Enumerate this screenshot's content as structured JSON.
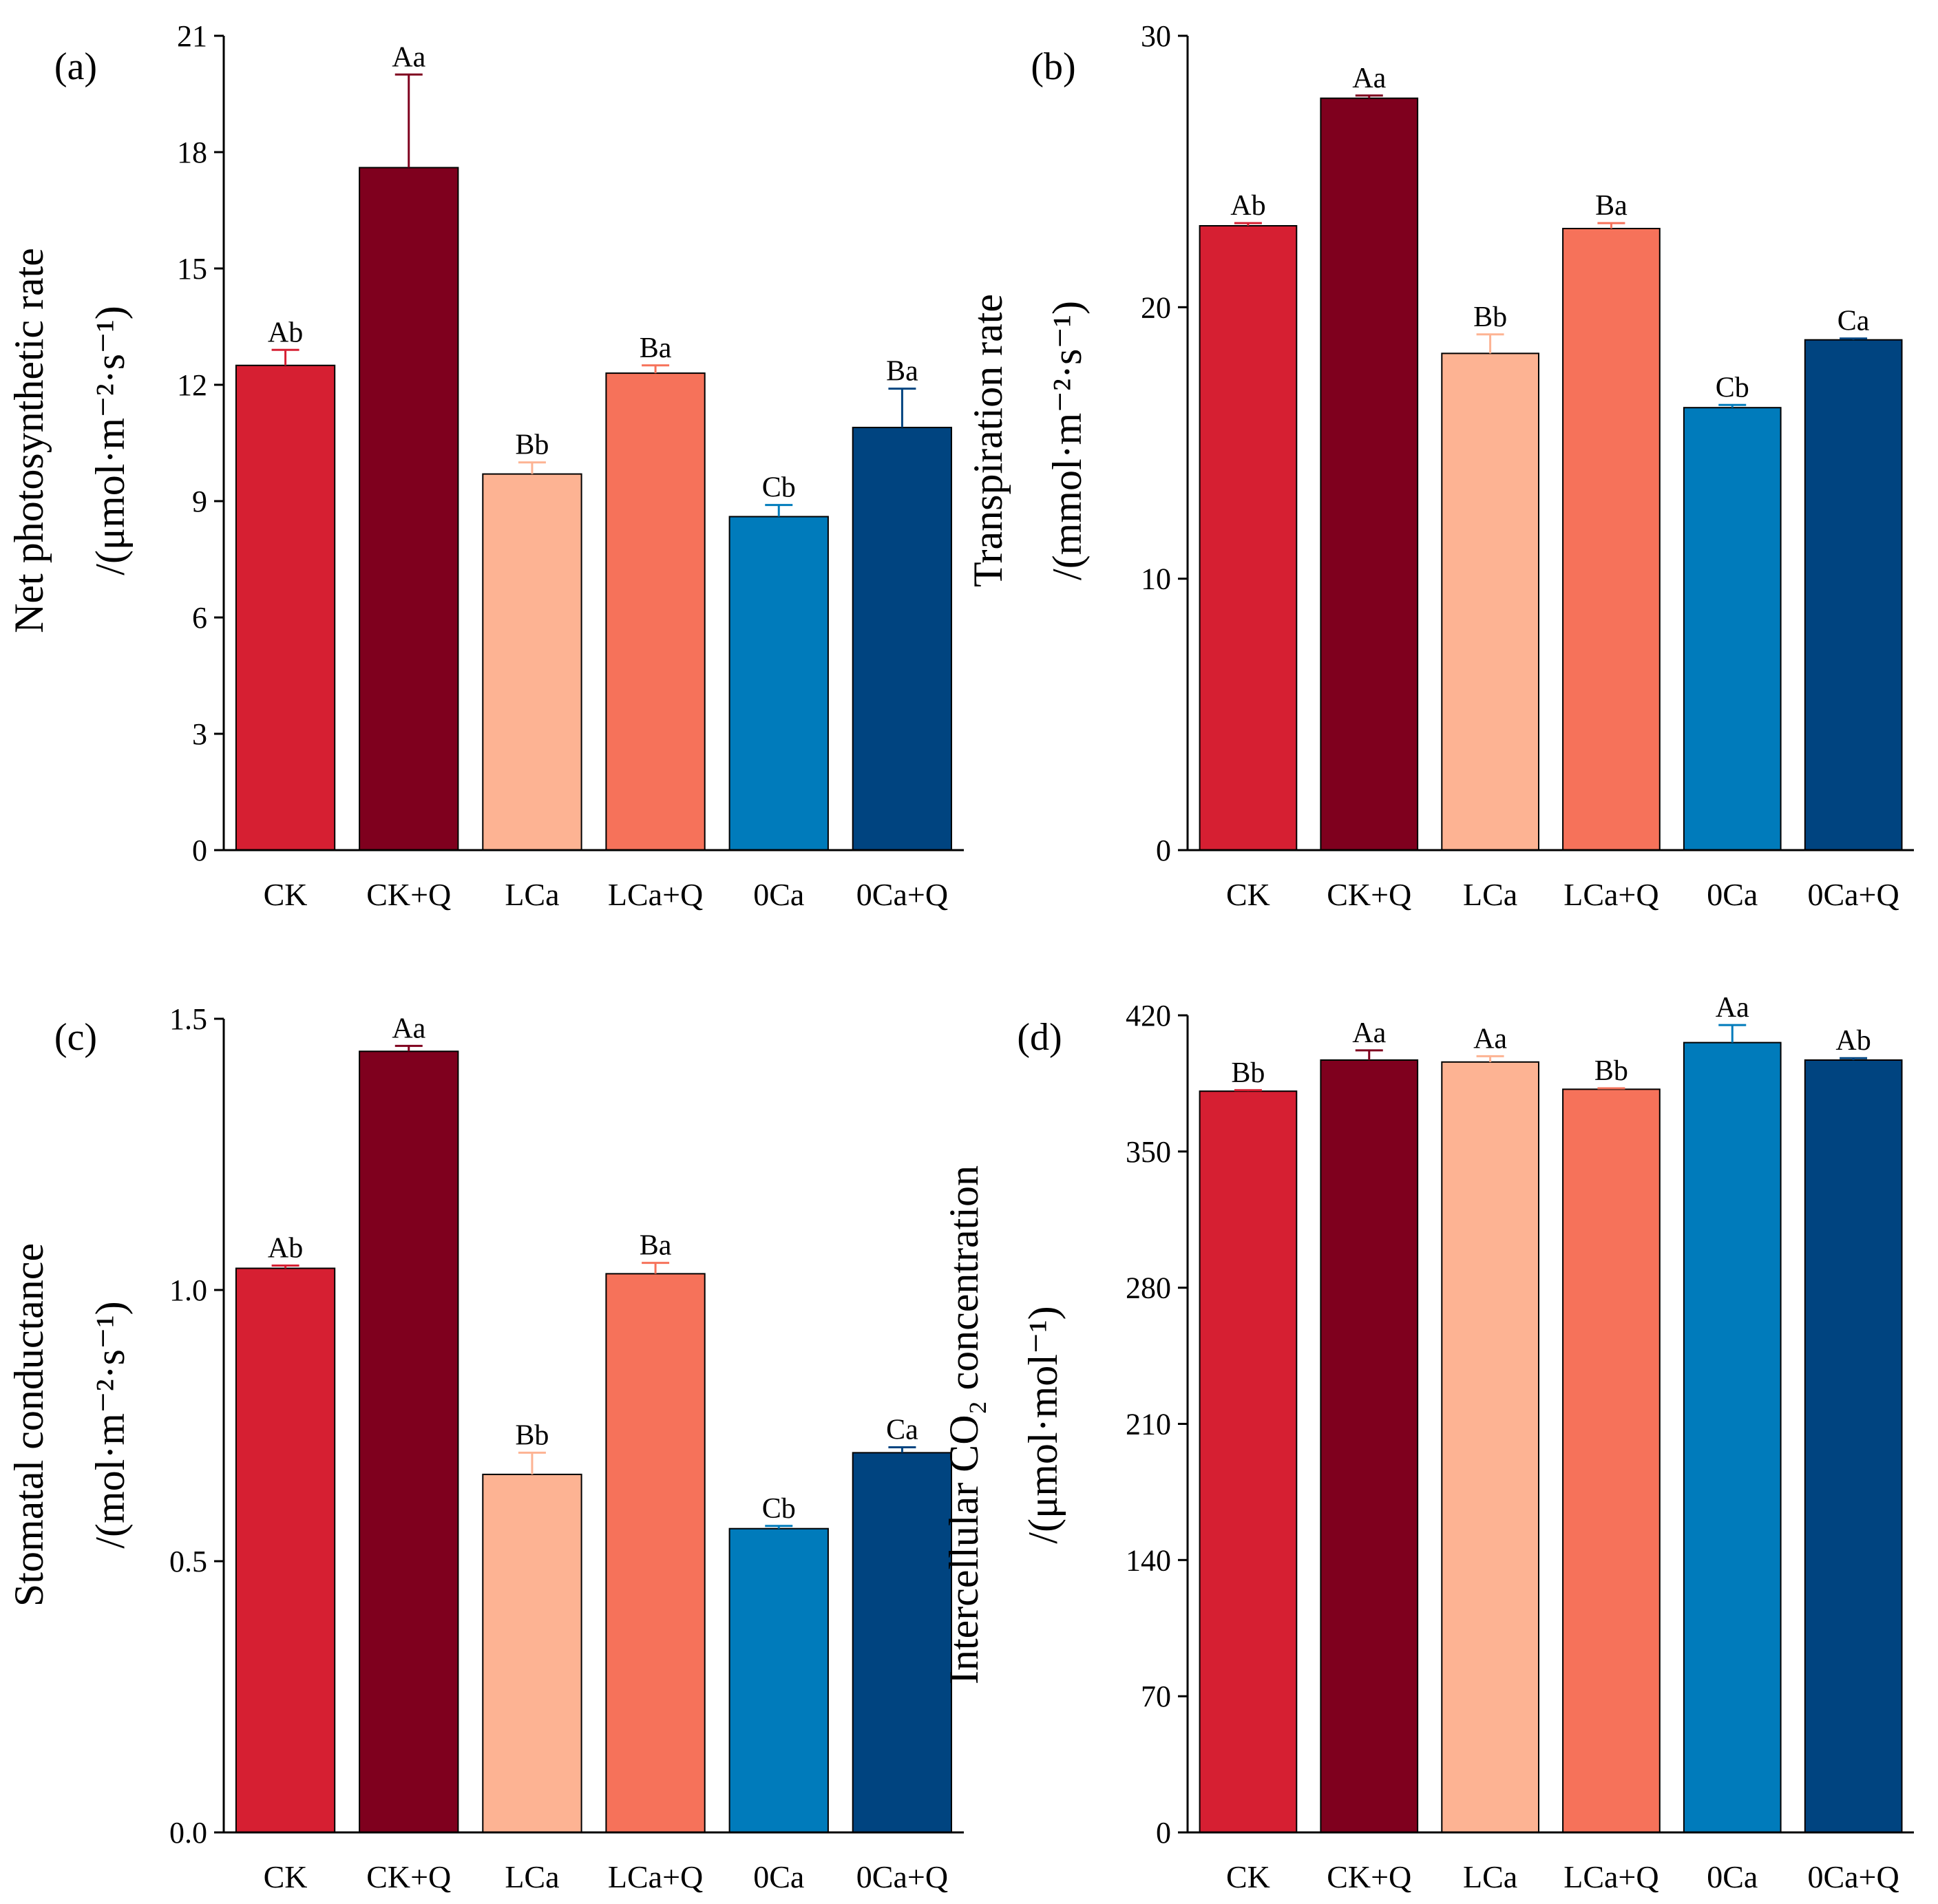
{
  "chart_data": [
    {
      "type": "bar",
      "panel": "(a)",
      "ylabel": [
        "Net photosynthetic rate",
        "/(μmol·m⁻²·s⁻¹)"
      ],
      "categories": [
        "CK",
        "CK+Q",
        "LCa",
        "LCa+Q",
        "0Ca",
        "0Ca+Q"
      ],
      "values": [
        12.5,
        17.6,
        9.7,
        12.3,
        8.6,
        10.9
      ],
      "errors": [
        0.4,
        2.4,
        0.3,
        0.2,
        0.3,
        1.0
      ],
      "significance": [
        "Ab",
        "Aa",
        "Bb",
        "Ba",
        "Cb",
        "Ba"
      ],
      "ylim": [
        0,
        21
      ],
      "yticks": [
        0,
        3,
        6,
        9,
        12,
        15,
        18,
        21
      ],
      "ytick_labels": [
        "0",
        "3",
        "6",
        "9",
        "12",
        "15",
        "18",
        "21"
      ]
    },
    {
      "type": "bar",
      "panel": "(b)",
      "ylabel": [
        "Transpiration rate",
        "/(mmol·m⁻²·s⁻¹)"
      ],
      "categories": [
        "CK",
        "CK+Q",
        "LCa",
        "LCa+Q",
        "0Ca",
        "0Ca+Q"
      ],
      "values": [
        23.0,
        27.7,
        18.3,
        22.9,
        16.3,
        18.8
      ],
      "errors": [
        0.1,
        0.1,
        0.7,
        0.2,
        0.1,
        0.05
      ],
      "significance": [
        "Ab",
        "Aa",
        "Bb",
        "Ba",
        "Cb",
        "Ca"
      ],
      "ylim": [
        0,
        30
      ],
      "yticks": [
        0,
        10,
        20,
        30
      ],
      "ytick_labels": [
        "0",
        "10",
        "20",
        "30"
      ]
    },
    {
      "type": "bar",
      "panel": "(c)",
      "ylabel": [
        "Stomatal conductance",
        "/(mol·m⁻²·s⁻¹)"
      ],
      "categories": [
        "CK",
        "CK+Q",
        "LCa",
        "LCa+Q",
        "0Ca",
        "0Ca+Q"
      ],
      "values": [
        1.04,
        1.44,
        0.66,
        1.03,
        0.56,
        0.7
      ],
      "errors": [
        0.005,
        0.01,
        0.04,
        0.02,
        0.005,
        0.01
      ],
      "significance": [
        "Ab",
        "Aa",
        "Bb",
        "Ba",
        "Cb",
        "Ca"
      ],
      "ylim": [
        0,
        1.5
      ],
      "yticks": [
        0,
        0.5,
        1.0,
        1.5
      ],
      "ytick_labels": [
        "0.0",
        "0.5",
        "1.0",
        "1.5"
      ]
    },
    {
      "type": "bar",
      "panel": "(d)",
      "ylabel": [
        "Intercellular CO₂ concentration",
        "/(μmol·mol⁻¹)"
      ],
      "categories": [
        "CK",
        "CK+Q",
        "LCa",
        "LCa+Q",
        "0Ca",
        "0Ca+Q"
      ],
      "values": [
        381,
        397,
        396,
        382,
        406,
        397
      ],
      "errors": [
        0.5,
        5,
        3,
        0.5,
        9,
        1
      ],
      "significance": [
        "Bb",
        "Aa",
        "Aa",
        "Bb",
        "Aa",
        "Ab"
      ],
      "ylim": [
        0,
        420
      ],
      "yticks": [
        0,
        70,
        140,
        210,
        280,
        350,
        420
      ],
      "ytick_labels": [
        "0",
        "70",
        "140",
        "210",
        "280",
        "350",
        "420"
      ]
    }
  ],
  "colors": {
    "bars": [
      "#d61f32",
      "#7f001e",
      "#fdb393",
      "#f6725a",
      "#007bbb",
      "#004480"
    ],
    "errorbars": [
      "#d61f32",
      "#7f001e",
      "#fdb393",
      "#f6725a",
      "#007bbb",
      "#004480"
    ]
  }
}
